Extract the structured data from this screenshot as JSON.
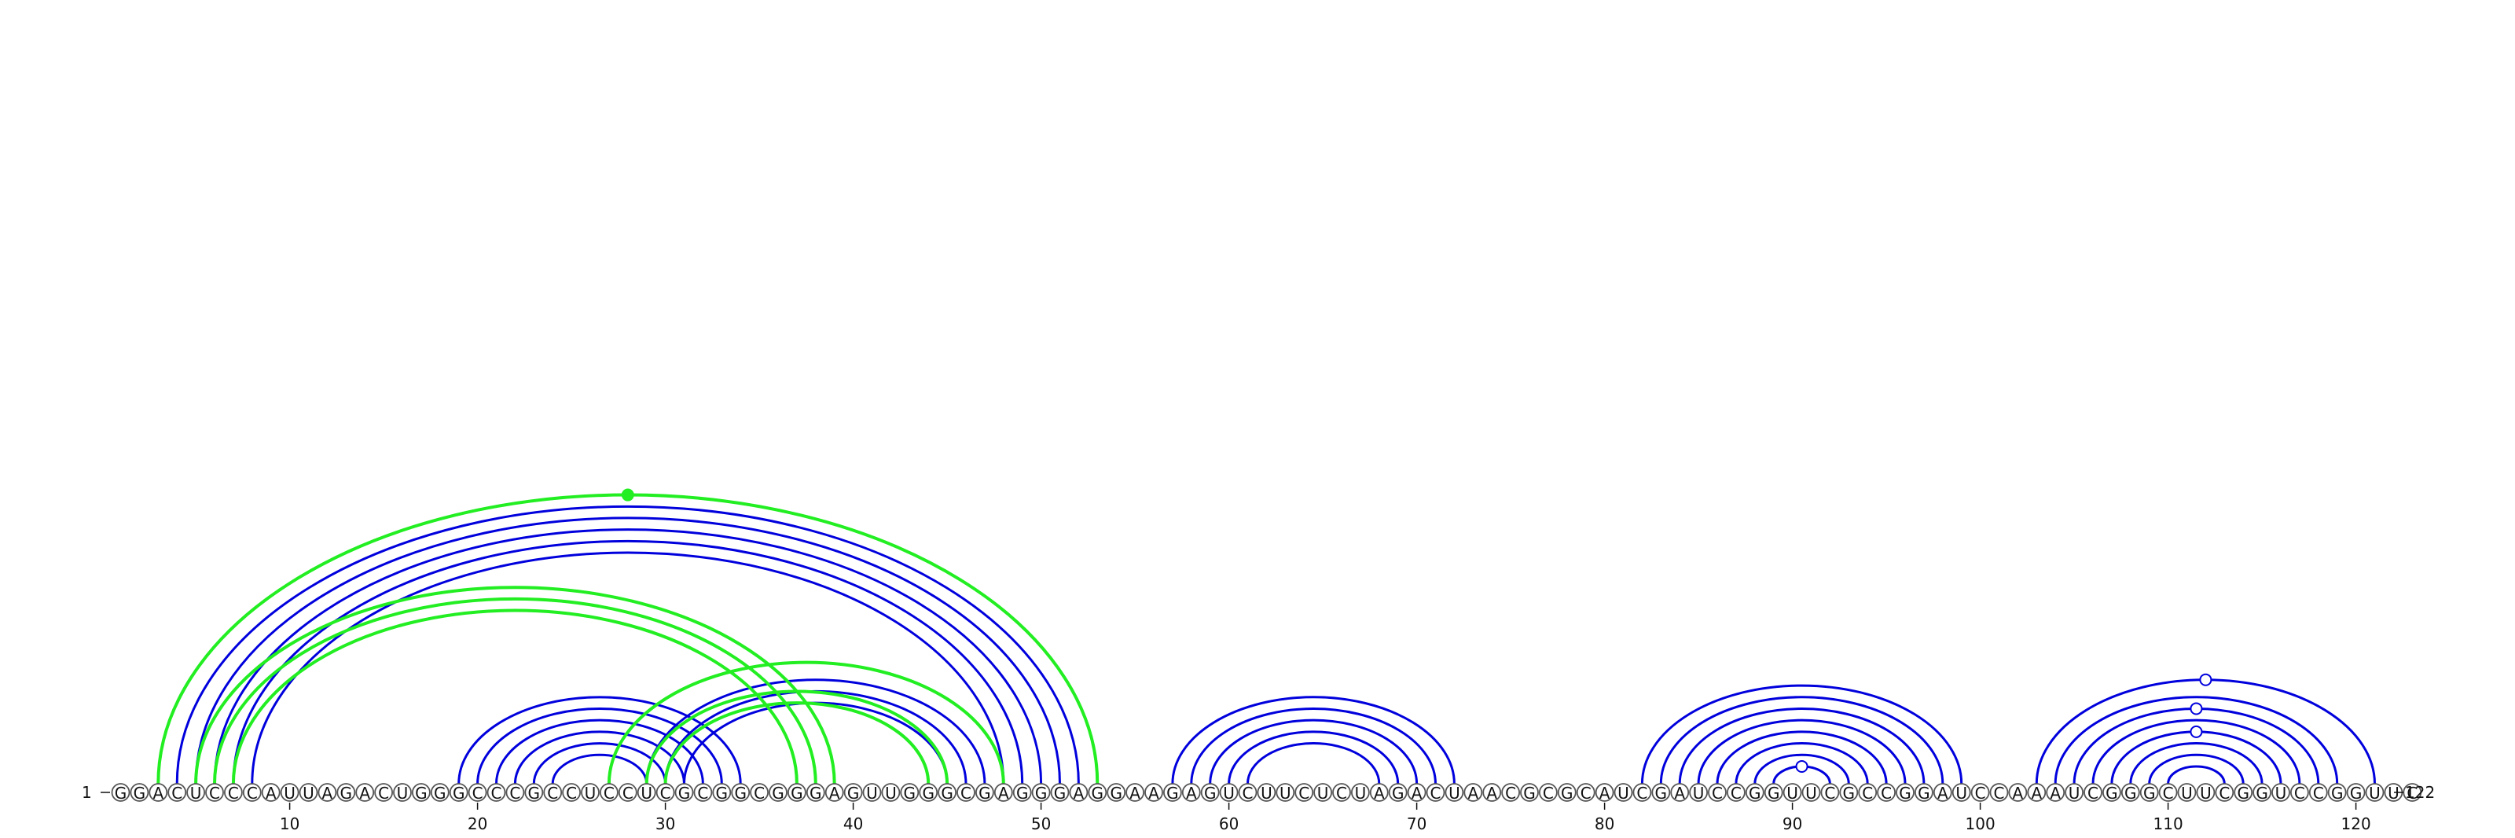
{
  "sequence": "GGACUCCCAUUAGACUGGGCCCGCCUCCUCGCGGCGGGAGUUGGGCGAGGGAGGAAGAGUCUUCUCUAGACUAACGCGCAUCGAUCCGGUUCGCCGGAUCCAAAUCGGGCUUCGGUCCGGUUC",
  "start_label": "1",
  "end_label": "122",
  "ticks": [
    {
      "position": 10,
      "label": "10"
    },
    {
      "position": 20,
      "label": "20"
    },
    {
      "position": 30,
      "label": "30"
    },
    {
      "position": 40,
      "label": "40"
    },
    {
      "position": 50,
      "label": "50"
    },
    {
      "position": 60,
      "label": "60"
    },
    {
      "position": 70,
      "label": "70"
    },
    {
      "position": 80,
      "label": "80"
    },
    {
      "position": 90,
      "label": "90"
    },
    {
      "position": 100,
      "label": "100"
    },
    {
      "position": 110,
      "label": "110"
    },
    {
      "position": 120,
      "label": "120"
    }
  ],
  "colors": {
    "blue_pairs": "#0000dd",
    "green_pairs": "#22ee22"
  },
  "arcs": [
    {
      "i": 4,
      "j": 52,
      "color": "blue"
    },
    {
      "i": 5,
      "j": 51,
      "color": "blue"
    },
    {
      "i": 6,
      "j": 50,
      "color": "blue"
    },
    {
      "i": 7,
      "j": 49,
      "color": "blue"
    },
    {
      "i": 8,
      "j": 48,
      "color": "blue"
    },
    {
      "i": 19,
      "j": 34,
      "color": "blue"
    },
    {
      "i": 20,
      "j": 33,
      "color": "blue"
    },
    {
      "i": 21,
      "j": 32,
      "color": "blue"
    },
    {
      "i": 22,
      "j": 31,
      "color": "blue"
    },
    {
      "i": 23,
      "j": 30,
      "color": "blue"
    },
    {
      "i": 24,
      "j": 29,
      "color": "blue"
    },
    {
      "i": 29,
      "j": 47,
      "color": "blue"
    },
    {
      "i": 30,
      "j": 46,
      "color": "blue"
    },
    {
      "i": 31,
      "j": 45,
      "color": "blue"
    },
    {
      "i": 57,
      "j": 72,
      "color": "blue"
    },
    {
      "i": 58,
      "j": 71,
      "color": "blue"
    },
    {
      "i": 59,
      "j": 70,
      "color": "blue"
    },
    {
      "i": 60,
      "j": 69,
      "color": "blue"
    },
    {
      "i": 61,
      "j": 68,
      "color": "blue"
    },
    {
      "i": 82,
      "j": 99,
      "color": "blue"
    },
    {
      "i": 83,
      "j": 98,
      "color": "blue"
    },
    {
      "i": 84,
      "j": 97,
      "color": "blue"
    },
    {
      "i": 85,
      "j": 96,
      "color": "blue"
    },
    {
      "i": 86,
      "j": 95,
      "color": "blue"
    },
    {
      "i": 87,
      "j": 94,
      "color": "blue"
    },
    {
      "i": 88,
      "j": 93,
      "color": "blue"
    },
    {
      "i": 89,
      "j": 92,
      "color": "blue"
    },
    {
      "i": 103,
      "j": 121,
      "color": "blue"
    },
    {
      "i": 104,
      "j": 119,
      "color": "blue"
    },
    {
      "i": 105,
      "j": 118,
      "color": "blue"
    },
    {
      "i": 106,
      "j": 117,
      "color": "blue"
    },
    {
      "i": 107,
      "j": 116,
      "color": "blue"
    },
    {
      "i": 108,
      "j": 115,
      "color": "blue"
    },
    {
      "i": 109,
      "j": 114,
      "color": "blue"
    },
    {
      "i": 110,
      "j": 113,
      "color": "blue"
    },
    {
      "i": 3,
      "j": 53,
      "color": "green"
    },
    {
      "i": 5,
      "j": 39,
      "color": "green"
    },
    {
      "i": 6,
      "j": 38,
      "color": "green"
    },
    {
      "i": 7,
      "j": 37,
      "color": "green"
    },
    {
      "i": 27,
      "j": 48,
      "color": "green"
    },
    {
      "i": 29,
      "j": 45,
      "color": "green"
    },
    {
      "i": 30,
      "j": 44,
      "color": "green"
    }
  ],
  "markers": [
    {
      "i": 3,
      "j": 53,
      "color": "green",
      "filled": true
    },
    {
      "i": 89,
      "j": 92,
      "color": "blue",
      "filled": false
    },
    {
      "i": 103,
      "j": 121,
      "color": "blue",
      "filled": false
    },
    {
      "i": 105,
      "j": 118,
      "color": "blue",
      "filled": false
    },
    {
      "i": 107,
      "j": 116,
      "color": "blue",
      "filled": false
    }
  ]
}
